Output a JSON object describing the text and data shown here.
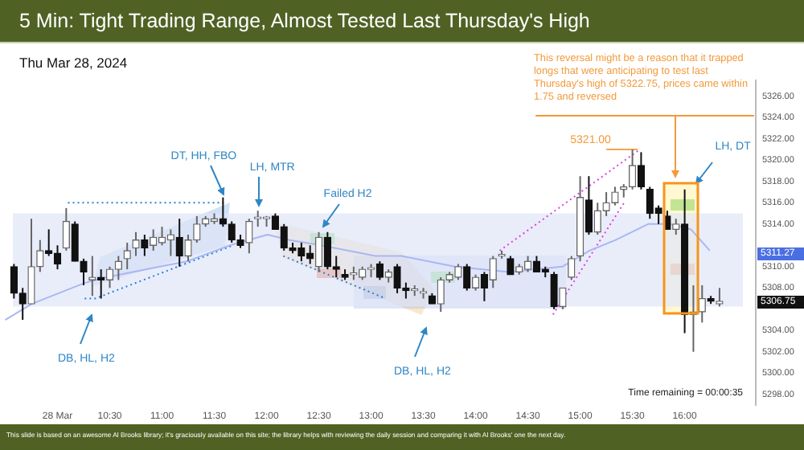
{
  "chart_data": {
    "type": "candlestick",
    "title": "5 Min: Tight Trading Range, Almost Tested Last Thursday's High",
    "subtitle": "Thu Mar 28, 2024",
    "x": [
      9.5833,
      9.6667,
      9.75,
      9.8333,
      9.9167,
      10,
      10.0833,
      10.1667,
      10.25,
      10.3333,
      10.4167,
      10.5,
      10.5833,
      10.6667,
      10.75,
      10.8333,
      10.9167,
      11,
      11.0833,
      11.1667,
      11.25,
      11.3333,
      11.4167,
      11.5,
      11.5833,
      11.6667,
      11.75,
      11.8333,
      11.9167,
      12,
      12.0833,
      12.1667,
      12.25,
      12.3333,
      12.4167,
      12.5,
      12.5833,
      12.6667,
      12.75,
      12.8333,
      12.9167,
      13,
      13.0833,
      13.1667,
      13.25,
      13.3333,
      13.4167,
      13.5,
      13.5833,
      13.6667,
      13.75,
      13.8333,
      13.9167,
      14,
      14.0833,
      14.1667,
      14.25,
      14.3333,
      14.4167,
      14.5,
      14.5833,
      14.6667,
      14.75,
      14.8333,
      14.9167,
      15,
      15.0833,
      15.1667,
      15.25,
      15.3333,
      15.4167,
      15.5,
      15.5833,
      15.6667,
      15.75,
      15.8333,
      15.9167,
      16,
      16.0833,
      16.1667,
      16.25,
      16.3333
    ],
    "ohlc": [
      [
        5310,
        5310.25,
        5307,
        5307.5
      ],
      [
        5307.5,
        5308,
        5305,
        5306.5
      ],
      [
        5306.5,
        5314.5,
        5306.5,
        5310
      ],
      [
        5310,
        5312.5,
        5309.5,
        5311.5
      ],
      [
        5311.5,
        5313.5,
        5311,
        5311.25
      ],
      [
        5311.25,
        5312,
        5309.75,
        5310.25
      ],
      [
        5311.75,
        5315.5,
        5311.5,
        5314.25
      ],
      [
        5314,
        5314.25,
        5310.5,
        5310.5
      ],
      [
        5310.5,
        5310.75,
        5308.25,
        5309.5
      ],
      [
        5308.75,
        5311,
        5307.25,
        5309
      ],
      [
        5309,
        5309.75,
        5307,
        5308.75
      ],
      [
        5308.75,
        5310,
        5308,
        5309.75
      ],
      [
        5309.75,
        5311,
        5308.75,
        5310.5
      ],
      [
        5310.75,
        5312.25,
        5309.75,
        5311.5
      ],
      [
        5311.75,
        5313.25,
        5311,
        5312.5
      ],
      [
        5312.5,
        5313,
        5311,
        5311.75
      ],
      [
        5312,
        5313.5,
        5311.5,
        5312.75
      ],
      [
        5312.25,
        5313.75,
        5312,
        5312.75
      ],
      [
        5312.5,
        5313.5,
        5311,
        5313
      ],
      [
        5312.75,
        5314.5,
        5310,
        5311
      ],
      [
        5311,
        5313,
        5310.5,
        5312.5
      ],
      [
        5312.5,
        5314.75,
        5312.25,
        5314
      ],
      [
        5314,
        5314.75,
        5313.75,
        5314.5
      ],
      [
        5314.25,
        5315,
        5314,
        5314.5
      ],
      [
        5314.5,
        5316.5,
        5313.75,
        5314
      ],
      [
        5314,
        5314.25,
        5312.25,
        5312.5
      ],
      [
        5312.5,
        5313,
        5311.75,
        5312
      ],
      [
        5312.25,
        5314.5,
        5311.25,
        5314.25
      ],
      [
        5314.5,
        5315.25,
        5313.75,
        5314.5
      ],
      [
        5314.5,
        5314.75,
        5313.75,
        5314.5
      ],
      [
        5314.75,
        5315,
        5313.5,
        5313.5
      ],
      [
        5313.75,
        5314,
        5311.5,
        5311.75
      ],
      [
        5311.75,
        5312.25,
        5311.25,
        5311.5
      ],
      [
        5311.75,
        5312.25,
        5310.5,
        5311
      ],
      [
        5311.25,
        5312,
        5310.25,
        5310.75
      ],
      [
        5310,
        5313.25,
        5309.5,
        5312.75
      ],
      [
        5312.75,
        5313.25,
        5309.75,
        5310
      ],
      [
        5310,
        5311,
        5309,
        5309.75
      ],
      [
        5309.25,
        5309.75,
        5308.75,
        5309
      ],
      [
        5309.25,
        5310,
        5308.75,
        5309.25
      ],
      [
        5309,
        5310,
        5308.75,
        5309.75
      ],
      [
        5309.75,
        5310.25,
        5309,
        5309.75
      ],
      [
        5310.25,
        5310.5,
        5308.75,
        5309
      ],
      [
        5309,
        5309.75,
        5308.5,
        5309.5
      ],
      [
        5310,
        5310.25,
        5307.5,
        5308
      ],
      [
        5308,
        5308.5,
        5307,
        5307.75
      ],
      [
        5307.75,
        5308.25,
        5307.25,
        5307.75
      ],
      [
        5307.5,
        5308,
        5307,
        5307.5
      ],
      [
        5307.25,
        5307.5,
        5306.5,
        5306.5
      ],
      [
        5306.5,
        5309,
        5305.75,
        5308.75
      ],
      [
        5308.75,
        5309.5,
        5308.5,
        5309.25
      ],
      [
        5309,
        5310.25,
        5308.75,
        5310
      ],
      [
        5310,
        5310.25,
        5307.75,
        5308
      ],
      [
        5308,
        5309.25,
        5307.75,
        5309
      ],
      [
        5309.25,
        5309.5,
        5306.75,
        5308
      ],
      [
        5308.75,
        5311,
        5308,
        5310.75
      ],
      [
        5311,
        5311.5,
        5310.75,
        5311
      ],
      [
        5310.75,
        5311,
        5309.25,
        5309.25
      ],
      [
        5309.5,
        5310.25,
        5309.25,
        5310
      ],
      [
        5309.75,
        5311,
        5309.5,
        5310.5
      ],
      [
        5310.5,
        5311,
        5309.5,
        5309.5
      ],
      [
        5309.75,
        5310,
        5309,
        5309.5
      ],
      [
        5309.25,
        5309.5,
        5306,
        5306.25
      ],
      [
        5306.25,
        5308,
        5306,
        5308
      ],
      [
        5309,
        5311,
        5308.75,
        5310.75
      ],
      [
        5311,
        5318.5,
        5310.5,
        5316.5
      ],
      [
        5316.25,
        5318.5,
        5313,
        5313.25
      ],
      [
        5313.25,
        5316,
        5313,
        5315.25
      ],
      [
        5315.25,
        5317,
        5314.75,
        5316
      ],
      [
        5316,
        5317.5,
        5315.75,
        5317
      ],
      [
        5317.25,
        5317.75,
        5316.5,
        5317.5
      ],
      [
        5317.5,
        5321,
        5317.25,
        5319.5
      ],
      [
        5319.5,
        5320.75,
        5317.25,
        5317.5
      ],
      [
        5317.25,
        5317.5,
        5314.5,
        5315
      ],
      [
        5315.5,
        5315.75,
        5314,
        5315
      ],
      [
        5314.75,
        5315.25,
        5313.5,
        5313.5
      ],
      [
        5313.5,
        5314.5,
        5313,
        5314
      ],
      [
        5314,
        5317.25,
        5303.75,
        5305.5
      ],
      [
        5305.5,
        5308.25,
        5302,
        5305.75
      ],
      [
        5305.75,
        5308.25,
        5304.75,
        5307
      ],
      [
        5307,
        5307.25,
        5306.5,
        5306.75
      ],
      [
        5306.5,
        5308,
        5306.25,
        5306.75
      ]
    ],
    "series": [
      {
        "type": "line",
        "color": "#a9b7f3",
        "x": [
          9.5,
          9.754,
          10.27,
          10.47,
          10.98,
          11.24,
          11.65,
          12.01,
          12.22,
          12.52,
          13.04,
          13.29,
          13.8,
          14.32,
          14.83,
          15.09,
          15.34,
          15.65,
          15.86,
          16.06,
          16.24
        ],
        "values": [
          5305,
          5306.5,
          5308.5,
          5309,
          5310,
          5310.5,
          5312,
          5313,
          5312.5,
          5312,
          5311,
          5311,
          5310,
          5309.5,
          5310,
          5311.5,
          5312.5,
          5314,
          5314,
          5313.5,
          5311.5
        ]
      },
      {
        "type": "line",
        "color": "#2a7fd4",
        "line_style": "dotted",
        "x": [
          10.1,
          11.59
        ],
        "values": [
          5316,
          5316
        ]
      },
      {
        "type": "line",
        "color": "#2a7fd4",
        "line_style": "dotted",
        "x": [
          10.26,
          10.36,
          11.68
        ],
        "values": [
          5307,
          5307,
          5312
        ]
      },
      {
        "type": "line",
        "color": "#2a7fd4",
        "line_style": "dotted",
        "x": [
          12.16,
          13.14
        ],
        "values": [
          5311,
          5307
        ]
      },
      {
        "type": "line",
        "color": "#e040e0",
        "line_style": "dotted",
        "x": [
          14.23,
          15.57
        ],
        "values": [
          5311.5,
          5321
        ]
      },
      {
        "type": "line",
        "color": "#e040e0",
        "line_style": "dotted",
        "x": [
          14.74,
          15.42
        ],
        "values": [
          5305.5,
          5316
        ]
      },
      {
        "type": "line",
        "color": "#f7a54a",
        "line_style": "solid",
        "x": [
          15.25,
          15.55
        ],
        "values": [
          5321,
          5321
        ]
      }
    ],
    "xlim": [
      9.45,
      16.68
    ],
    "xticks": [
      {
        "value": 10,
        "label": "28 Mar"
      },
      {
        "value": 10.5,
        "label": "10:30"
      },
      {
        "value": 11,
        "label": "11:00"
      },
      {
        "value": 11.5,
        "label": "11:30"
      },
      {
        "value": 12,
        "label": "12:00"
      },
      {
        "value": 12.5,
        "label": "12:30"
      },
      {
        "value": 13,
        "label": "13:00"
      },
      {
        "value": 13.5,
        "label": "13:30"
      },
      {
        "value": 14,
        "label": "14:00"
      },
      {
        "value": 14.5,
        "label": "14:30"
      },
      {
        "value": 15,
        "label": "15:00"
      },
      {
        "value": 15.5,
        "label": "15:30"
      },
      {
        "value": 16,
        "label": "16:00"
      }
    ],
    "ylim": [
      5297,
      5327.5
    ],
    "yticks": [
      {
        "value": 5298,
        "label": "5298.00"
      },
      {
        "value": 5300,
        "label": "5300.00"
      },
      {
        "value": 5302,
        "label": "5302.00"
      },
      {
        "value": 5304,
        "label": "5304.00"
      },
      {
        "value": 5308,
        "label": "5308.00"
      },
      {
        "value": 5310,
        "label": "5310.00"
      },
      {
        "value": 5314,
        "label": "5314.00"
      },
      {
        "value": 5316,
        "label": "5316.00"
      },
      {
        "value": 5318,
        "label": "5318.00"
      },
      {
        "value": 5320,
        "label": "5320.00"
      },
      {
        "value": 5322,
        "label": "5322.00"
      },
      {
        "value": 5324,
        "label": "5324.00"
      },
      {
        "value": 5326,
        "label": "5326.00"
      }
    ],
    "bands": [
      {
        "axis": "y",
        "from": 5306.25,
        "to": 5315,
        "color": "#dfe5f8"
      }
    ],
    "annotations": [
      {
        "text": "DT, HH, FBO",
        "x": 11.5833,
        "y": 5316.5
      },
      {
        "text": "LH, MTR",
        "x": 11.9167,
        "y": 5315.25
      },
      {
        "text": "Failed H2",
        "x": 12.5,
        "y": 5313.25
      },
      "DB, HL, H2",
      "DB, HL, H2",
      {
        "text": "LH, DT",
        "x": 16,
        "y": 5317.25
      },
      {
        "text": "5321.00",
        "x": 15.5,
        "y": 5321
      },
      "This reversal might be a reason that it trapped longs that were anticipating to test last Thursday's high of 5322.75, prices came within 1.75 and reversed",
      "Time remaining = 00:00:35",
      "This slide is based on an awesome Al Brooks library; it's graciously available on this site; the library helps with reviewing the daily session and comparing it with Al Brooks' one the next day.",
      "5311.27",
      "5306.75"
    ]
  }
}
